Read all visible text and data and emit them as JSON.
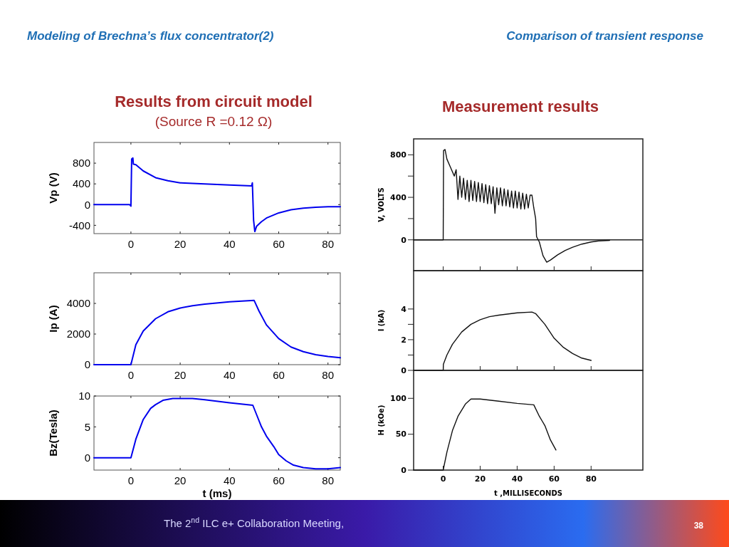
{
  "chart_data": [
    {
      "type": "line",
      "title": "Results from circuit model",
      "subtitle": "(Source R =0.12 Ω)",
      "ylabel": "Vp (V)",
      "xlim": [
        -15,
        85
      ],
      "ylim": [
        -560,
        1200
      ],
      "xticks": [
        0,
        20,
        40,
        60,
        80
      ],
      "yticks": [
        -400,
        0,
        400,
        800
      ],
      "series": [
        {
          "color": "#0000ee",
          "x": [
            -15,
            -0.5,
            0,
            0.3,
            0.8,
            1,
            2,
            5,
            10,
            15,
            20,
            30,
            40,
            49,
            49.3,
            49.8,
            50.3,
            51,
            53,
            55,
            60,
            65,
            70,
            75,
            80,
            85
          ],
          "values": [
            0,
            0,
            -30,
            880,
            900,
            780,
            770,
            650,
            520,
            460,
            420,
            400,
            380,
            360,
            420,
            -300,
            -520,
            -420,
            -330,
            -260,
            -160,
            -100,
            -70,
            -50,
            -40,
            -40
          ]
        }
      ]
    },
    {
      "type": "line",
      "ylabel": "Ip (A)",
      "xlim": [
        -15,
        85
      ],
      "ylim": [
        0,
        6000
      ],
      "xticks": [
        0,
        20,
        40,
        60,
        80
      ],
      "yticks": [
        0,
        2000,
        4000
      ],
      "series": [
        {
          "color": "#0000ee",
          "x": [
            -15,
            0,
            2,
            5,
            10,
            15,
            20,
            25,
            30,
            40,
            45,
            50,
            52,
            55,
            60,
            65,
            70,
            75,
            80,
            85
          ],
          "values": [
            0,
            0,
            1300,
            2200,
            3000,
            3450,
            3700,
            3850,
            3950,
            4100,
            4150,
            4200,
            3500,
            2600,
            1700,
            1150,
            850,
            650,
            530,
            450
          ]
        }
      ]
    },
    {
      "type": "line",
      "xlabel": "t (ms)",
      "ylabel": "Bz(Tesla)",
      "xlim": [
        -15,
        85
      ],
      "ylim": [
        -2,
        10
      ],
      "xticks": [
        0,
        20,
        40,
        60,
        80
      ],
      "yticks": [
        0,
        5,
        10
      ],
      "series": [
        {
          "color": "#0000ee",
          "x": [
            -15,
            0,
            2,
            5,
            8,
            10,
            13,
            17,
            25,
            30,
            40,
            49.5,
            51,
            53,
            55,
            58,
            60,
            63,
            66,
            70,
            75,
            80,
            85
          ],
          "values": [
            0,
            0,
            3,
            6.2,
            8,
            8.6,
            9.3,
            9.6,
            9.6,
            9.4,
            8.9,
            8.5,
            7,
            5,
            3.5,
            1.8,
            0.5,
            -0.5,
            -1.2,
            -1.6,
            -1.8,
            -1.8,
            -1.6
          ]
        }
      ]
    },
    {
      "type": "line",
      "title": "Measurement results",
      "ylabel": "V, VOLTS",
      "xlim": [
        -16,
        108
      ],
      "ylim": [
        -290,
        950
      ],
      "xticks": [
        0,
        20,
        40,
        60,
        80
      ],
      "yticks": [
        0,
        {
          "value": 200,
          "label": null
        },
        400,
        {
          "value": 600,
          "label": null
        },
        800
      ],
      "tick_labels": "y",
      "series": [
        {
          "color": "#111111",
          "x": [
            -16,
            0,
            0.2,
            1,
            2,
            4,
            5,
            6,
            7,
            8,
            9,
            10,
            11,
            12,
            13,
            14,
            15,
            16,
            17,
            18,
            19,
            20,
            21,
            22,
            23,
            24,
            25,
            26,
            27,
            28,
            29,
            30,
            31,
            32,
            33,
            34,
            35,
            36,
            37,
            38,
            39,
            40,
            41,
            42,
            43,
            44,
            45,
            46,
            47,
            48,
            49,
            50,
            50.5,
            52,
            54,
            56,
            58,
            62,
            66,
            70,
            75,
            80,
            84,
            90
          ],
          "values": [
            0,
            0,
            840,
            850,
            760,
            680,
            640,
            600,
            660,
            380,
            600,
            400,
            580,
            380,
            560,
            360,
            560,
            370,
            550,
            360,
            540,
            360,
            530,
            350,
            520,
            340,
            510,
            340,
            500,
            250,
            490,
            330,
            490,
            320,
            480,
            320,
            470,
            310,
            460,
            300,
            460,
            300,
            450,
            290,
            440,
            290,
            430,
            300,
            420,
            420,
            300,
            200,
            30,
            -20,
            -150,
            -210,
            -190,
            -140,
            -100,
            -70,
            -40,
            -20,
            -10,
            -5
          ]
        }
      ]
    },
    {
      "type": "line",
      "ylabel": "I (kA)",
      "xlim": [
        -16,
        108
      ],
      "ylim": [
        0,
        6.5
      ],
      "xticks": [
        0,
        20,
        40,
        60,
        80
      ],
      "yticks": [
        0,
        {
          "value": 1,
          "label": null
        },
        2,
        {
          "value": 3,
          "label": null
        },
        4
      ],
      "tick_labels": "y",
      "series": [
        {
          "color": "#111111",
          "x": [
            -16,
            0,
            0.1,
            2,
            5,
            10,
            15,
            20,
            25,
            30,
            40,
            48,
            50,
            55,
            60,
            65,
            70,
            75,
            80
          ],
          "values": [
            0,
            0,
            0.4,
            1.0,
            1.7,
            2.5,
            3.0,
            3.3,
            3.5,
            3.6,
            3.75,
            3.8,
            3.7,
            3.0,
            2.1,
            1.5,
            1.1,
            0.8,
            0.65
          ]
        }
      ]
    },
    {
      "type": "line",
      "xlabel": "t ,MILLISECONDS",
      "ylabel": "H (kOe)",
      "xlim": [
        -16,
        108
      ],
      "ylim": [
        0,
        139
      ],
      "xticks": [
        0,
        20,
        40,
        60,
        80
      ],
      "yticks": [
        0,
        50,
        100
      ],
      "series": [
        {
          "color": "#111111",
          "x": [
            -16,
            0,
            2,
            5,
            8,
            12,
            15,
            20,
            30,
            40,
            49,
            52,
            55,
            58,
            61
          ],
          "values": [
            0,
            0,
            25,
            55,
            75,
            92,
            99,
            99,
            96,
            93,
            91,
            75,
            62,
            42,
            28
          ]
        }
      ]
    },
    {
      "type": "other",
      "title": "Modeling of Brechna’s flux concentrator(2)",
      "subtitle": "Comparison of transient response",
      "annotations": [
        "The 2$^{nd}$ ILC e+ Collaboration Meeting,",
        "38"
      ]
    }
  ]
}
